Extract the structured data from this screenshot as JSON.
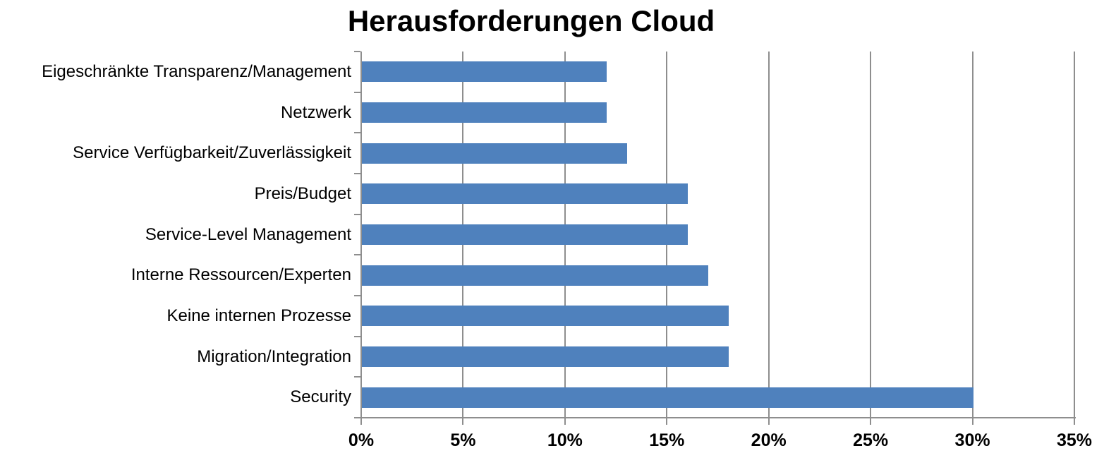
{
  "title": "Herausforderungen Cloud",
  "chart_data": {
    "type": "bar",
    "orientation": "horizontal",
    "title": "Herausforderungen Cloud",
    "categories": [
      "Eigeschränkte Transparenz/Management",
      "Netzwerk",
      "Service Verfügbarkeit/Zuverlässigkeit",
      "Preis/Budget",
      "Service-Level Management",
      "Interne Ressourcen/Experten",
      "Keine internen Prozesse",
      "Migration/Integration",
      "Security"
    ],
    "values": [
      12,
      12,
      13,
      16,
      16,
      17,
      18,
      18,
      30
    ],
    "unit": "%",
    "xlabel": "",
    "ylabel": "",
    "xlim": [
      0,
      35
    ],
    "xtick_values": [
      0,
      5,
      10,
      15,
      20,
      25,
      30,
      35
    ],
    "xtick_labels": [
      "0%",
      "5%",
      "10%",
      "15%",
      "20%",
      "25%",
      "30%",
      "35%"
    ],
    "grid": true,
    "legend": false,
    "colors": {
      "bar": "#4F81BD",
      "grid": "#8E8E8E",
      "axis": "#8E8E8E",
      "text": "#000000",
      "background": "#FFFFFF"
    }
  }
}
